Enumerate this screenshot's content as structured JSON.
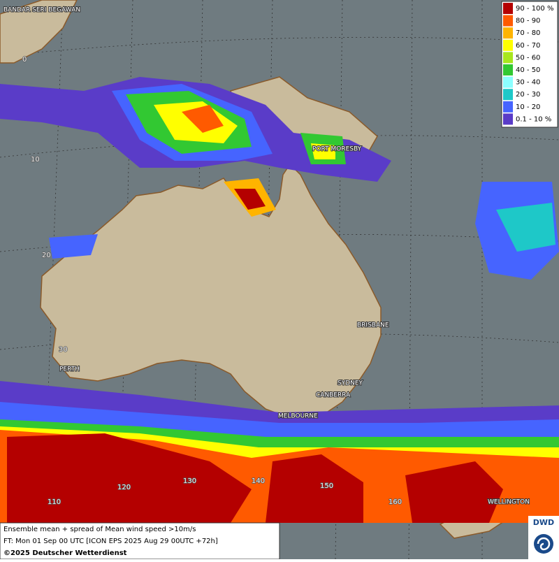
{
  "legend": {
    "items": [
      {
        "label": "90 - 100 %",
        "color": "#b40000"
      },
      {
        "label": "80 - 90",
        "color": "#ff5a00"
      },
      {
        "label": "70 - 80",
        "color": "#ffb400"
      },
      {
        "label": "60 - 70",
        "color": "#ffff00"
      },
      {
        "label": "50 - 60",
        "color": "#a8e61e"
      },
      {
        "label": "40 - 50",
        "color": "#32c832"
      },
      {
        "label": "30 - 40",
        "color": "#8cffff"
      },
      {
        "label": "20 - 30",
        "color": "#1ec8c8"
      },
      {
        "label": "10 - 20",
        "color": "#4664ff"
      },
      {
        "label": "0.1 - 10 %",
        "color": "#5a3cc8"
      }
    ]
  },
  "map": {
    "places": [
      "BANDAR SERI BEGAWAN",
      "PORT MORESBY",
      "BRISBANE",
      "PERTH",
      "SYDNEY",
      "CANBERRA",
      "MELBOURNE",
      "WELLINGTON"
    ],
    "grid_labels": [
      "0",
      "10",
      "20",
      "30",
      "110",
      "120",
      "130",
      "140",
      "150",
      "160"
    ]
  },
  "footer": {
    "lines": [
      "Ensemble mean + spread of Mean wind speed >10m/s",
      "FT: Mon 01 Sep 00 UTC [ICON EPS 2025 Aug 29 00UTC +72h]",
      "©2025 Deutscher Wetterdienst"
    ]
  },
  "logo": {
    "text": "DWD"
  }
}
